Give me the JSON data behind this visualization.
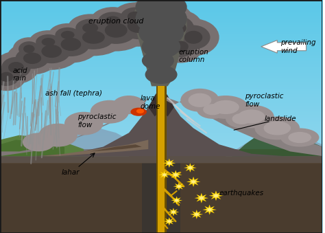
{
  "bg_sky_top": "#5bc8e8",
  "bg_sky_bottom": "#a8ddf0",
  "ground_dark": "#4a3c2e",
  "ground_mid": "#6a5a48",
  "ground_light": "#8a7a68",
  "volcano_color": "#5a5050",
  "volcano_dark": "#3a3030",
  "magma_color": "#d4a000",
  "magma_dark": "#8a6000",
  "lava_color": "#cc3300",
  "ash_color": "#888080",
  "ash_dark": "#555050",
  "ash_light": "#aaa0a0",
  "tree_color": "#4a7030",
  "tree_dark": "#2a5020",
  "hill_color": "#7090a0",
  "white": "#ffffff",
  "labels": {
    "acid_rain": "acid\nrain",
    "eruption_cloud": "eruption cloud",
    "eruption_column": "eruption\ncolumn",
    "prevailing_wind": "prevailing\nwind",
    "ash_fall": "ash fall (tephra)",
    "lava_dome": "lava\ndome",
    "pyroclastic_flow_left": "pyroclastic\nflow",
    "pyroclastic_flow_right": "pyroclastic\nflow",
    "landslide": "landslide",
    "lahar": "lahar",
    "earthquakes": "earthquakes"
  },
  "border_color": "#1a1a1a",
  "border_width": 2
}
